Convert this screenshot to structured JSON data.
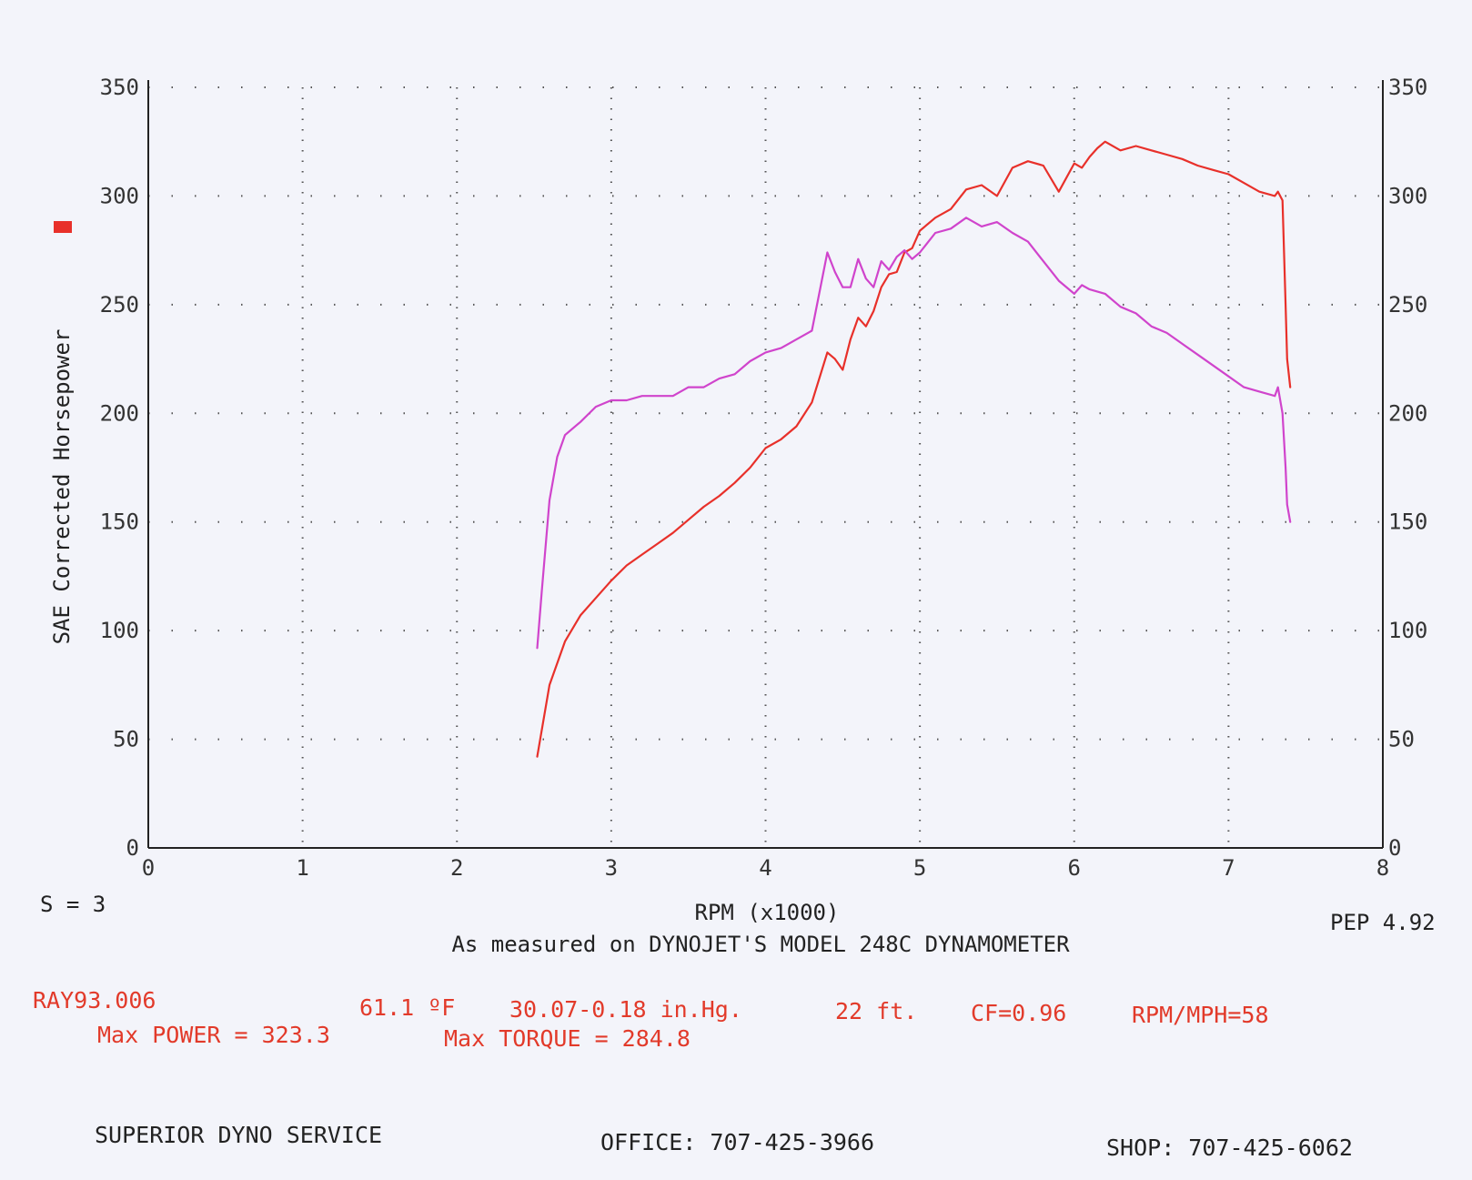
{
  "chart_data": {
    "type": "line",
    "ylabel": "SAE Corrected Horsepower",
    "xlabel": "RPM (x1000)",
    "x_ticks": [
      "0",
      "1",
      "2",
      "3",
      "4",
      "5",
      "6",
      "7",
      "8"
    ],
    "y_ticks": [
      "0",
      "50",
      "100",
      "150",
      "200",
      "250",
      "300",
      "350"
    ],
    "y2_ticks": [
      "0",
      "50",
      "100",
      "150",
      "200",
      "250",
      "300",
      "350"
    ],
    "xlim": [
      0,
      8
    ],
    "ylim": [
      0,
      350
    ],
    "grid": true,
    "colors": {
      "power": "#e8302a",
      "torque": "#d044cc"
    },
    "series": [
      {
        "key": "power",
        "x": [
          2.52,
          2.6,
          2.7,
          2.8,
          2.9,
          3.0,
          3.1,
          3.2,
          3.3,
          3.4,
          3.5,
          3.6,
          3.7,
          3.8,
          3.9,
          4.0,
          4.1,
          4.2,
          4.3,
          4.4,
          4.45,
          4.5,
          4.55,
          4.6,
          4.65,
          4.7,
          4.75,
          4.8,
          4.85,
          4.9,
          4.95,
          5.0,
          5.1,
          5.2,
          5.3,
          5.4,
          5.5,
          5.6,
          5.7,
          5.8,
          5.9,
          6.0,
          6.05,
          6.1,
          6.15,
          6.2,
          6.3,
          6.4,
          6.5,
          6.6,
          6.7,
          6.8,
          6.9,
          7.0,
          7.1,
          7.2,
          7.3,
          7.32,
          7.35,
          7.37,
          7.38,
          7.4
        ],
        "values": [
          42,
          75,
          95,
          107,
          115,
          123,
          130,
          135,
          140,
          145,
          151,
          157,
          162,
          168,
          175,
          184,
          188,
          194,
          205,
          228,
          225,
          220,
          234,
          244,
          240,
          247,
          258,
          264,
          265,
          274,
          276,
          284,
          290,
          294,
          303,
          305,
          300,
          313,
          316,
          314,
          302,
          315,
          313,
          318,
          322,
          325,
          321,
          323,
          321,
          319,
          317,
          314,
          312,
          310,
          306,
          302,
          300,
          302,
          298,
          250,
          225,
          212
        ],
        "y_axis": "left"
      },
      {
        "key": "torque",
        "x": [
          2.52,
          2.55,
          2.6,
          2.65,
          2.7,
          2.8,
          2.9,
          3.0,
          3.1,
          3.2,
          3.3,
          3.4,
          3.5,
          3.6,
          3.7,
          3.8,
          3.9,
          4.0,
          4.1,
          4.2,
          4.3,
          4.35,
          4.4,
          4.45,
          4.5,
          4.55,
          4.6,
          4.65,
          4.7,
          4.75,
          4.8,
          4.85,
          4.9,
          4.95,
          5.0,
          5.1,
          5.2,
          5.3,
          5.4,
          5.5,
          5.6,
          5.7,
          5.8,
          5.9,
          6.0,
          6.05,
          6.1,
          6.2,
          6.3,
          6.4,
          6.5,
          6.6,
          6.7,
          6.8,
          6.9,
          7.0,
          7.1,
          7.2,
          7.3,
          7.32,
          7.35,
          7.37,
          7.38,
          7.4
        ],
        "values": [
          92,
          118,
          160,
          180,
          190,
          196,
          203,
          206,
          206,
          208,
          208,
          208,
          212,
          212,
          216,
          218,
          224,
          228,
          230,
          234,
          238,
          256,
          274,
          265,
          258,
          258,
          271,
          262,
          258,
          270,
          266,
          272,
          275,
          271,
          274,
          283,
          285,
          290,
          286,
          288,
          283,
          279,
          270,
          261,
          255,
          259,
          257,
          255,
          249,
          246,
          240,
          237,
          232,
          227,
          222,
          217,
          212,
          210,
          208,
          212,
          200,
          175,
          158,
          150
        ],
        "y_axis": "left"
      }
    ]
  },
  "legend_mark_color": "#e8302a",
  "info": {
    "s_value": "S = 3",
    "pep": "PEP 4.92",
    "measured": "As measured on DYNOJET'S MODEL 248C DYNAMOMETER",
    "run_id": "RAY93.006",
    "temp": "61.1 ºF",
    "pressure": "30.07-0.18 in.Hg.",
    "altitude": "22 ft.",
    "cf": "CF=0.96",
    "rpm_mph": "RPM/MPH=58",
    "max_power": "Max POWER = 323.3",
    "max_torque": "Max TORQUE = 284.8"
  },
  "footer": {
    "company": "SUPERIOR DYNO SERVICE",
    "office": "OFFICE: 707-425-3966",
    "shop": "SHOP: 707-425-6062"
  }
}
